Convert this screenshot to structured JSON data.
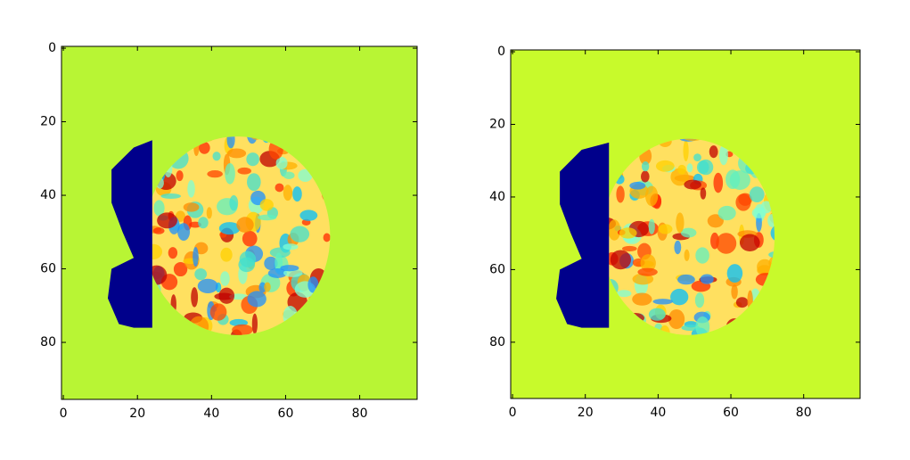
{
  "chart_data": [
    {
      "type": "heatmap",
      "xlim": [
        -0.5,
        95.5
      ],
      "ylim": [
        95.5,
        -0.5
      ],
      "xticks": [
        0,
        20,
        40,
        60,
        80
      ],
      "yticks": [
        0,
        20,
        40,
        60,
        80
      ],
      "background": "#b8f534"
    },
    {
      "type": "heatmap",
      "xlim": [
        -0.5,
        95.5
      ],
      "ylim": [
        95.5,
        -0.5
      ],
      "xticks": [
        0,
        20,
        40,
        60,
        80
      ],
      "yticks": [
        0,
        20,
        40,
        60,
        80
      ],
      "background": "#c8fa2b"
    }
  ]
}
